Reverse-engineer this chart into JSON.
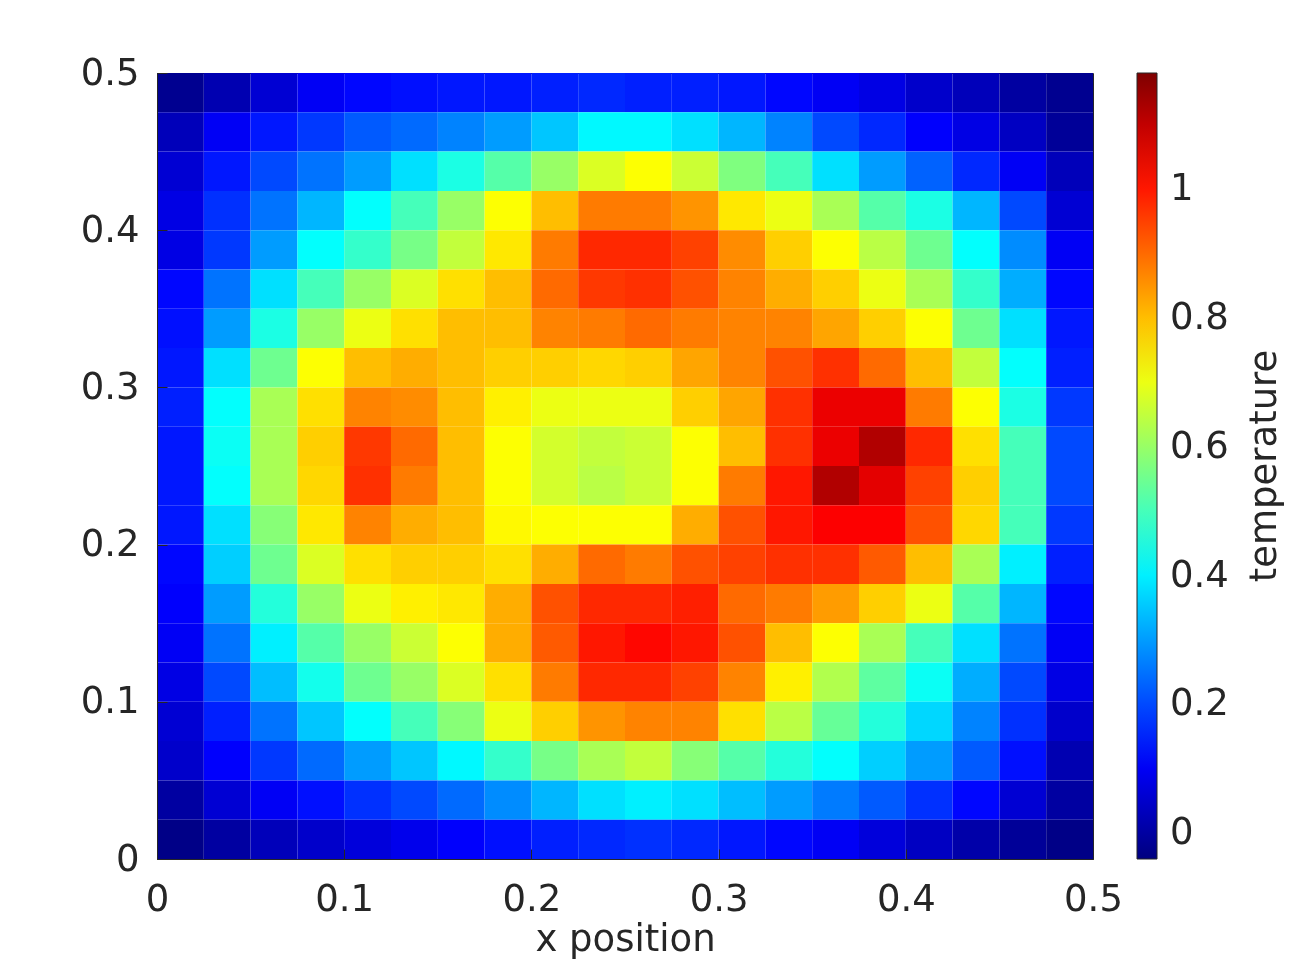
{
  "chart_data": {
    "type": "heatmap",
    "xlabel": "x position",
    "clabel": "temperature",
    "x": [
      0.0125,
      0.0375,
      0.0625,
      0.0875,
      0.1125,
      0.1375,
      0.1625,
      0.1875,
      0.2125,
      0.2375,
      0.2625,
      0.2875,
      0.3125,
      0.3375,
      0.3625,
      0.3875,
      0.4125,
      0.4375,
      0.4625,
      0.4875
    ],
    "xlim": [
      0,
      0.5
    ],
    "ylim": [
      0,
      0.5
    ],
    "xticks": [
      0,
      0.1,
      0.2,
      0.3,
      0.4,
      0.5
    ],
    "yticks": [
      0,
      0.1,
      0.2,
      0.3,
      0.4,
      0.5
    ],
    "clim": [
      -0.04,
      1.18
    ],
    "cticks": [
      0,
      0.2,
      0.4,
      0.6,
      0.8,
      1
    ],
    "cells": [
      [
        -0.02,
        0.02,
        0.06,
        0.1,
        0.12,
        0.13,
        0.14,
        0.14,
        0.15,
        0.16,
        0.15,
        0.15,
        0.14,
        0.12,
        0.1,
        0.08,
        0.05,
        0.03,
        0.0,
        -0.02
      ],
      [
        0.03,
        0.1,
        0.14,
        0.18,
        0.22,
        0.24,
        0.27,
        0.3,
        0.35,
        0.41,
        0.41,
        0.38,
        0.33,
        0.27,
        0.2,
        0.16,
        0.11,
        0.08,
        0.04,
        -0.01
      ],
      [
        0.06,
        0.14,
        0.2,
        0.25,
        0.3,
        0.38,
        0.45,
        0.52,
        0.6,
        0.68,
        0.72,
        0.66,
        0.57,
        0.5,
        0.38,
        0.3,
        0.23,
        0.16,
        0.1,
        0.03
      ],
      [
        0.08,
        0.17,
        0.25,
        0.33,
        0.42,
        0.5,
        0.6,
        0.72,
        0.8,
        0.88,
        0.88,
        0.85,
        0.75,
        0.7,
        0.62,
        0.52,
        0.45,
        0.33,
        0.2,
        0.06
      ],
      [
        0.08,
        0.18,
        0.3,
        0.42,
        0.48,
        0.56,
        0.65,
        0.75,
        0.88,
        0.98,
        0.98,
        0.95,
        0.86,
        0.78,
        0.72,
        0.64,
        0.55,
        0.42,
        0.28,
        0.1
      ],
      [
        0.12,
        0.25,
        0.38,
        0.5,
        0.6,
        0.68,
        0.76,
        0.8,
        0.9,
        0.96,
        0.97,
        0.93,
        0.87,
        0.82,
        0.78,
        0.7,
        0.62,
        0.48,
        0.32,
        0.12
      ],
      [
        0.13,
        0.3,
        0.45,
        0.6,
        0.7,
        0.76,
        0.8,
        0.8,
        0.87,
        0.88,
        0.9,
        0.88,
        0.87,
        0.87,
        0.83,
        0.78,
        0.72,
        0.55,
        0.38,
        0.14
      ],
      [
        0.14,
        0.38,
        0.55,
        0.72,
        0.8,
        0.82,
        0.8,
        0.78,
        0.78,
        0.77,
        0.78,
        0.83,
        0.87,
        0.93,
        0.97,
        0.9,
        0.8,
        0.65,
        0.42,
        0.15
      ],
      [
        0.15,
        0.42,
        0.62,
        0.76,
        0.87,
        0.86,
        0.8,
        0.74,
        0.7,
        0.7,
        0.7,
        0.78,
        0.83,
        0.97,
        1.05,
        1.05,
        0.88,
        0.72,
        0.45,
        0.18
      ],
      [
        0.14,
        0.43,
        0.62,
        0.78,
        0.96,
        0.9,
        0.8,
        0.72,
        0.67,
        0.65,
        0.66,
        0.72,
        0.8,
        0.97,
        1.05,
        1.12,
        0.98,
        0.76,
        0.5,
        0.2
      ],
      [
        0.14,
        0.42,
        0.62,
        0.77,
        0.97,
        0.88,
        0.8,
        0.72,
        0.67,
        0.64,
        0.66,
        0.72,
        0.88,
        1.0,
        1.12,
        1.06,
        0.95,
        0.78,
        0.5,
        0.2
      ],
      [
        0.14,
        0.38,
        0.58,
        0.75,
        0.87,
        0.82,
        0.8,
        0.73,
        0.72,
        0.72,
        0.72,
        0.82,
        0.93,
        1.0,
        1.03,
        1.03,
        0.93,
        0.77,
        0.5,
        0.18
      ],
      [
        0.12,
        0.36,
        0.55,
        0.68,
        0.76,
        0.78,
        0.78,
        0.76,
        0.82,
        0.9,
        0.88,
        0.93,
        0.95,
        0.97,
        0.97,
        0.92,
        0.8,
        0.62,
        0.4,
        0.15
      ],
      [
        0.11,
        0.3,
        0.46,
        0.6,
        0.7,
        0.74,
        0.75,
        0.82,
        0.93,
        0.98,
        0.98,
        0.99,
        0.9,
        0.88,
        0.84,
        0.78,
        0.7,
        0.52,
        0.33,
        0.12
      ],
      [
        0.1,
        0.25,
        0.4,
        0.52,
        0.6,
        0.66,
        0.72,
        0.82,
        0.92,
        1.0,
        1.02,
        1.0,
        0.93,
        0.8,
        0.72,
        0.62,
        0.5,
        0.38,
        0.25,
        0.1
      ],
      [
        0.08,
        0.2,
        0.34,
        0.44,
        0.55,
        0.6,
        0.68,
        0.76,
        0.88,
        0.98,
        0.98,
        0.95,
        0.87,
        0.74,
        0.63,
        0.53,
        0.43,
        0.32,
        0.2,
        0.08
      ],
      [
        0.06,
        0.15,
        0.25,
        0.35,
        0.42,
        0.5,
        0.58,
        0.7,
        0.78,
        0.85,
        0.87,
        0.87,
        0.76,
        0.64,
        0.54,
        0.46,
        0.37,
        0.27,
        0.17,
        0.05
      ],
      [
        0.05,
        0.11,
        0.18,
        0.24,
        0.3,
        0.35,
        0.41,
        0.48,
        0.56,
        0.62,
        0.65,
        0.58,
        0.52,
        0.46,
        0.42,
        0.36,
        0.3,
        0.22,
        0.13,
        0.02
      ],
      [
        0.0,
        0.06,
        0.1,
        0.13,
        0.17,
        0.2,
        0.24,
        0.28,
        0.33,
        0.38,
        0.4,
        0.38,
        0.34,
        0.3,
        0.26,
        0.22,
        0.17,
        0.12,
        0.06,
        0.0
      ],
      [
        -0.03,
        0.0,
        0.03,
        0.05,
        0.07,
        0.09,
        0.11,
        0.13,
        0.15,
        0.16,
        0.17,
        0.16,
        0.14,
        0.12,
        0.1,
        0.07,
        0.04,
        0.01,
        -0.01,
        -0.03
      ]
    ]
  }
}
